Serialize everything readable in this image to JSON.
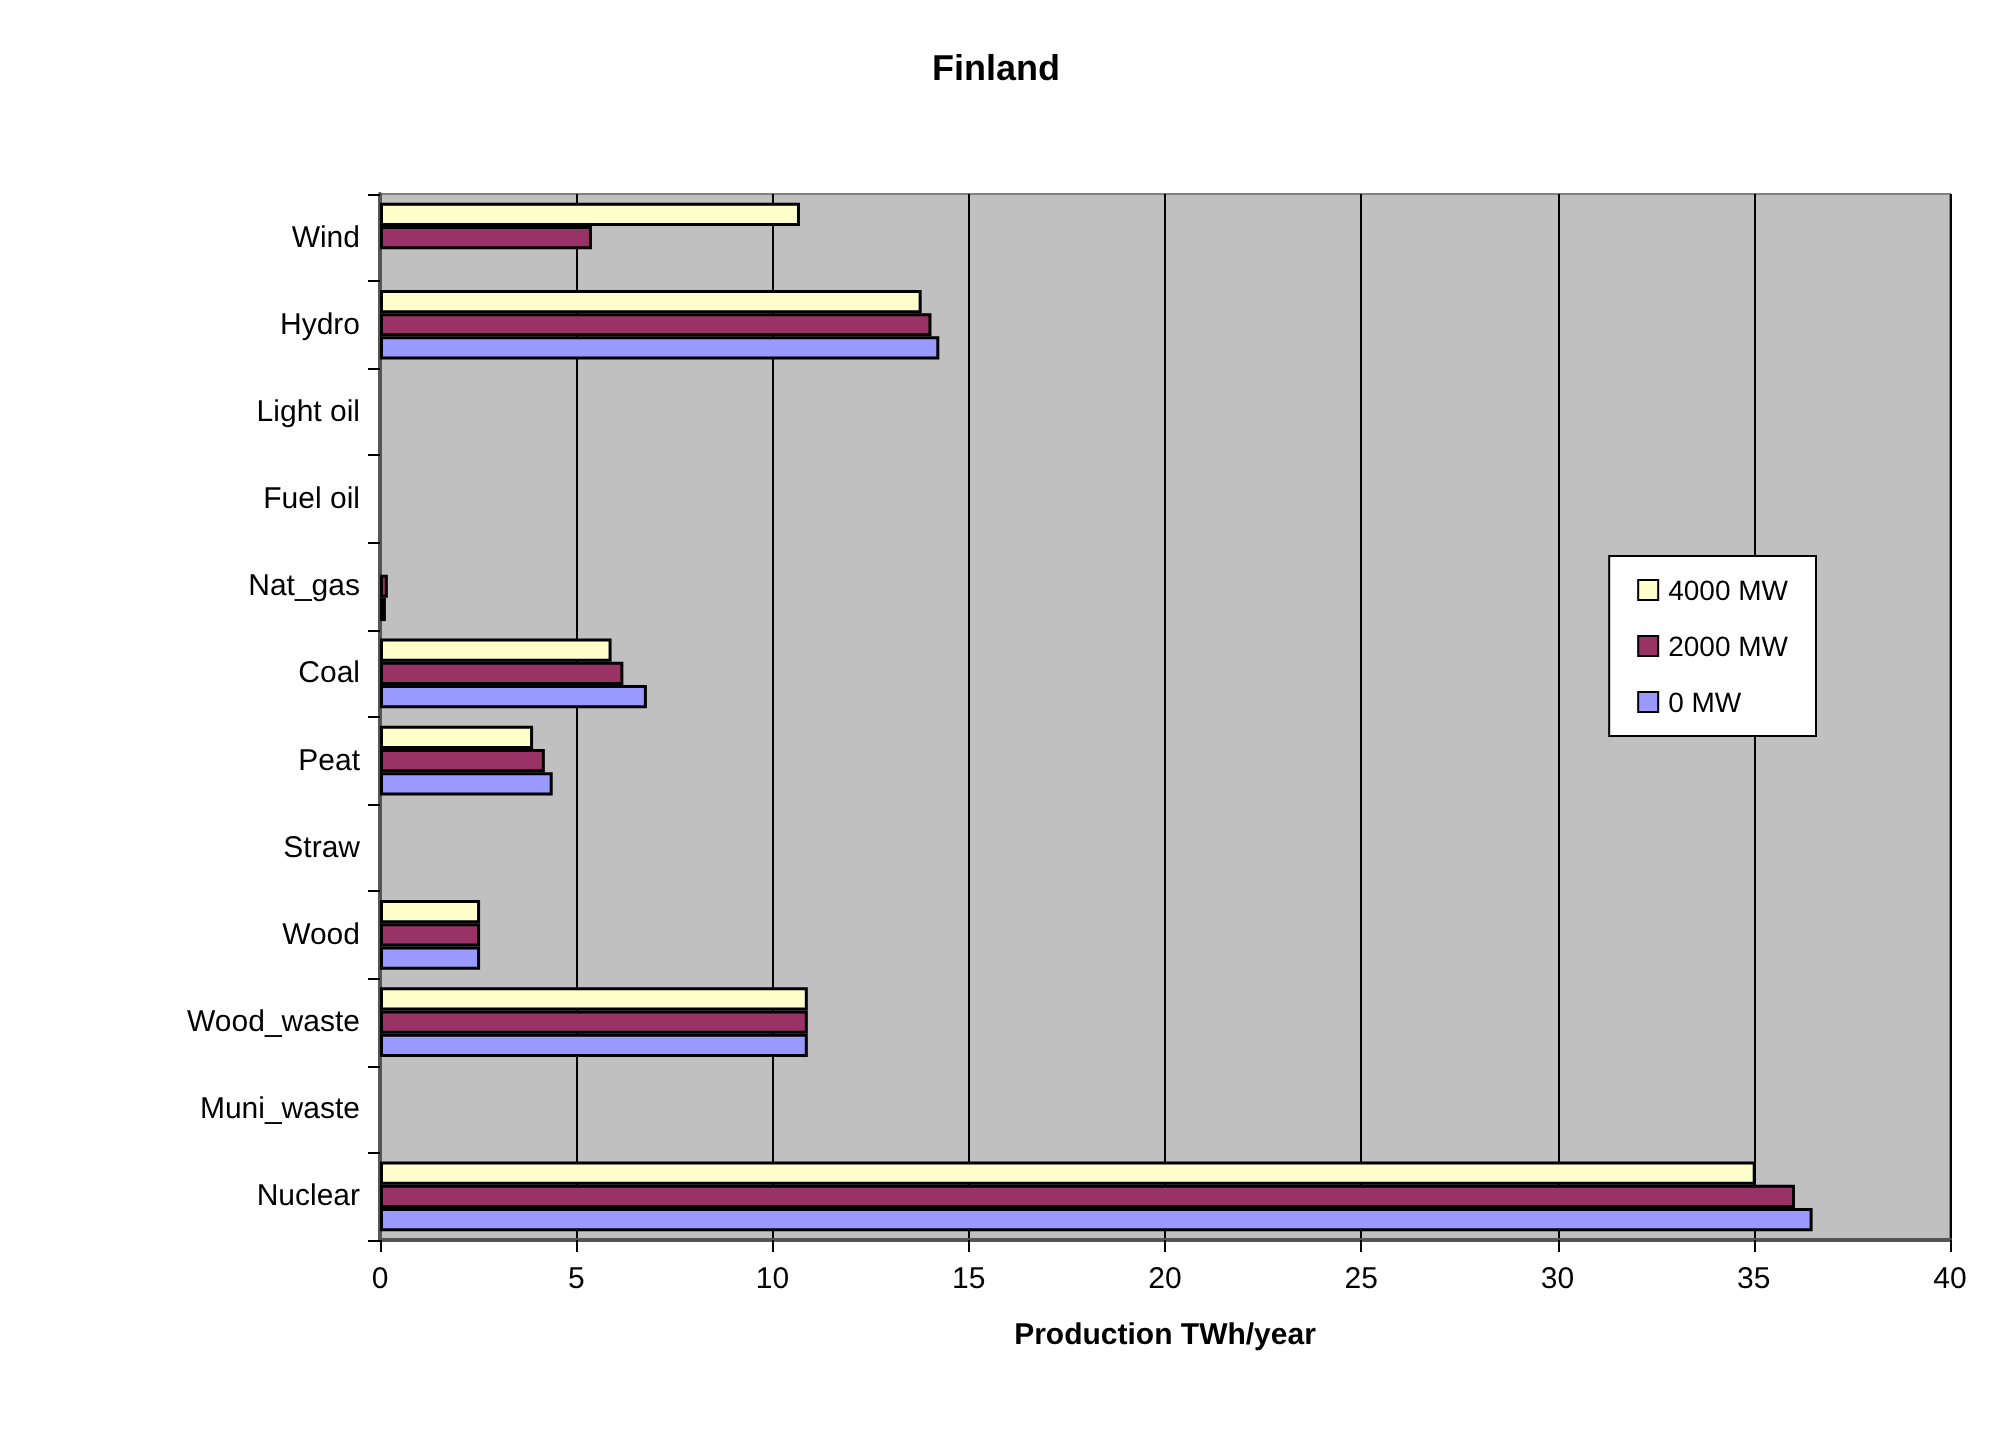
{
  "chart_data": {
    "type": "bar",
    "orientation": "horizontal",
    "title": "Finland",
    "xlabel": "Production TWh/year",
    "categories": [
      "Wind",
      "Hydro",
      "Light oil",
      "Fuel oil",
      "Nat_gas",
      "Coal",
      "Peat",
      "Straw",
      "Wood",
      "Wood_waste",
      "Muni_waste",
      "Nuclear"
    ],
    "series": [
      {
        "name": "4000 MW",
        "color": "#ffffcc",
        "values": [
          10.7,
          13.8,
          null,
          null,
          null,
          5.9,
          3.9,
          null,
          2.55,
          10.9,
          null,
          35.05
        ]
      },
      {
        "name": "2000 MW",
        "color": "#993366",
        "values": [
          5.4,
          14.05,
          null,
          null,
          0.2,
          6.2,
          4.2,
          null,
          2.55,
          10.9,
          null,
          36.05
        ]
      },
      {
        "name": "0 MW",
        "color": "#9999ff",
        "values": [
          null,
          14.25,
          null,
          null,
          0.15,
          6.8,
          4.4,
          null,
          2.55,
          10.9,
          null,
          36.5
        ]
      }
    ],
    "xlim": [
      0,
      40
    ],
    "xticks": [
      0,
      5,
      10,
      15,
      20,
      25,
      30,
      35,
      40
    ],
    "grid": "x",
    "legend": "right"
  }
}
